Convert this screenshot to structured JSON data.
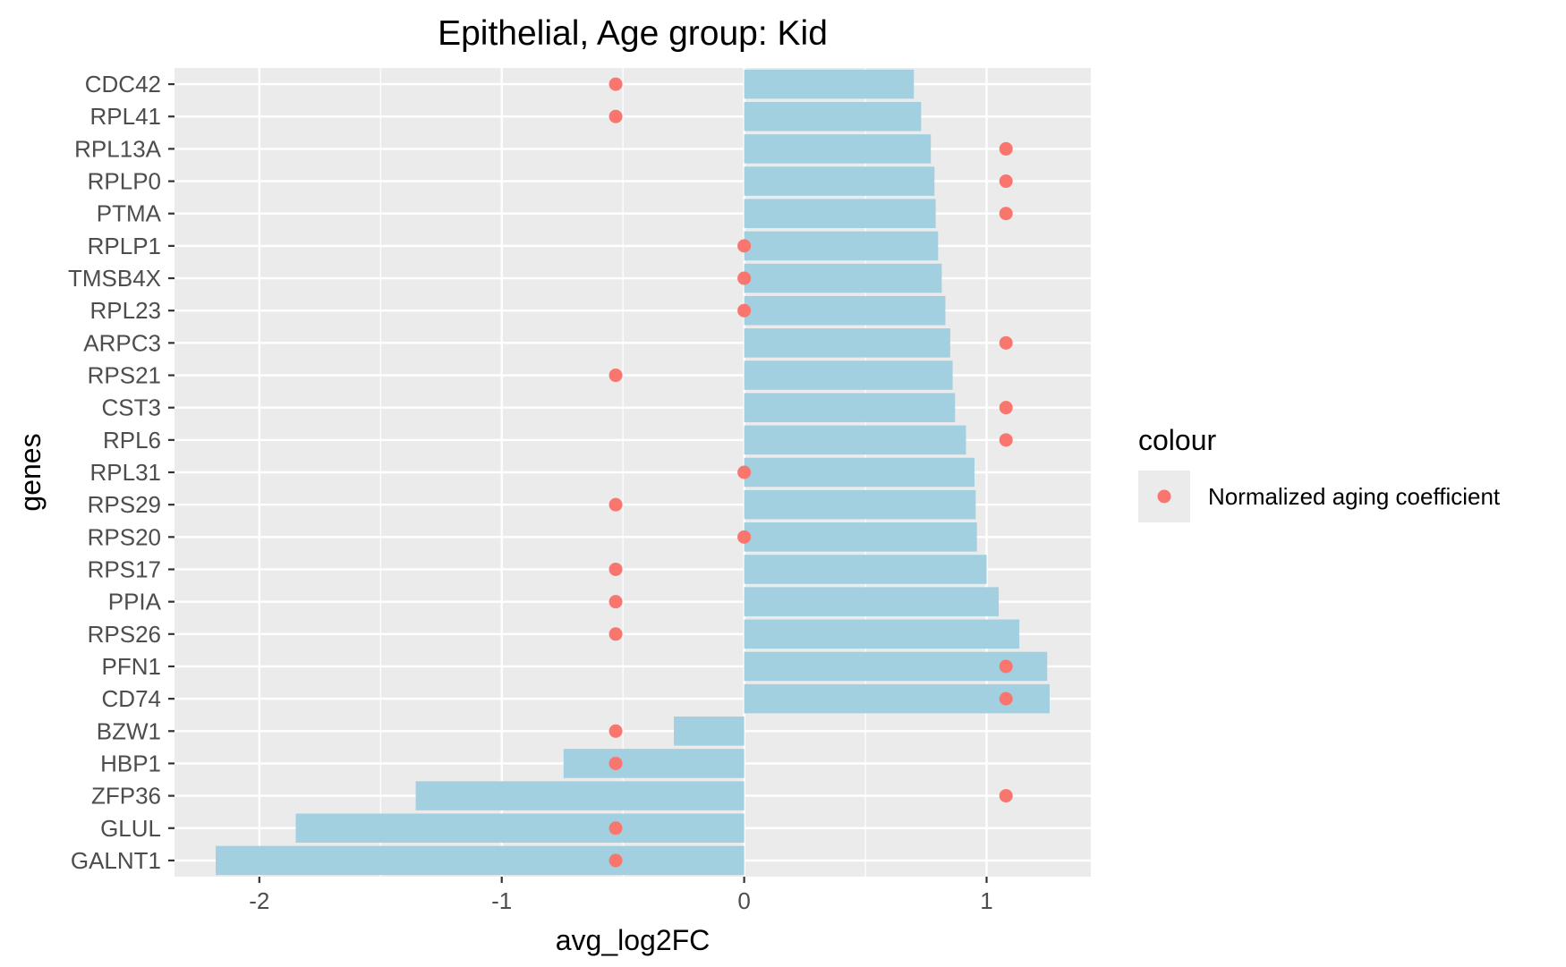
{
  "chart_data": {
    "type": "bar",
    "orientation": "horizontal",
    "title": "Epithelial, Age group: Kid",
    "xlabel": "avg_log2FC",
    "ylabel": "genes",
    "xlim": [
      -2.35,
      1.43
    ],
    "x_ticks": [
      -2,
      -1,
      0,
      1
    ],
    "grid": true,
    "legend": {
      "title": "colour",
      "position": "right",
      "entries": [
        {
          "label": "Normalized aging coefficient",
          "color": "#F8766D"
        }
      ]
    },
    "colors": {
      "bar": "#A3D0E0",
      "point": "#F8766D",
      "panel": "#EBEBEB",
      "grid": "#FFFFFF"
    },
    "categories": [
      "CDC42",
      "RPL41",
      "RPL13A",
      "RPLP0",
      "PTMA",
      "RPLP1",
      "TMSB4X",
      "RPL23",
      "ARPC3",
      "RPS21",
      "CST3",
      "RPL6",
      "RPL31",
      "RPS29",
      "RPS20",
      "RPS17",
      "PPIA",
      "RPS26",
      "PFN1",
      "CD74",
      "BZW1",
      "HBP1",
      "ZFP36",
      "GLUL",
      "GALNT1"
    ],
    "series": [
      {
        "name": "avg_log2FC",
        "mark": "bar",
        "values": [
          0.7,
          0.73,
          0.77,
          0.785,
          0.79,
          0.8,
          0.815,
          0.83,
          0.85,
          0.86,
          0.87,
          0.915,
          0.95,
          0.955,
          0.96,
          1.0,
          1.05,
          1.135,
          1.25,
          1.26,
          -0.29,
          -0.745,
          -1.355,
          -1.85,
          -2.18
        ]
      },
      {
        "name": "Normalized aging coefficient",
        "mark": "point",
        "values": [
          -0.53,
          -0.53,
          1.08,
          1.08,
          1.08,
          0.0,
          0.0,
          0.0,
          1.08,
          -0.53,
          1.08,
          1.08,
          0.0,
          -0.53,
          0.0,
          -0.53,
          -0.53,
          -0.53,
          1.08,
          1.08,
          -0.53,
          -0.53,
          1.08,
          -0.53,
          -0.53
        ]
      }
    ]
  }
}
